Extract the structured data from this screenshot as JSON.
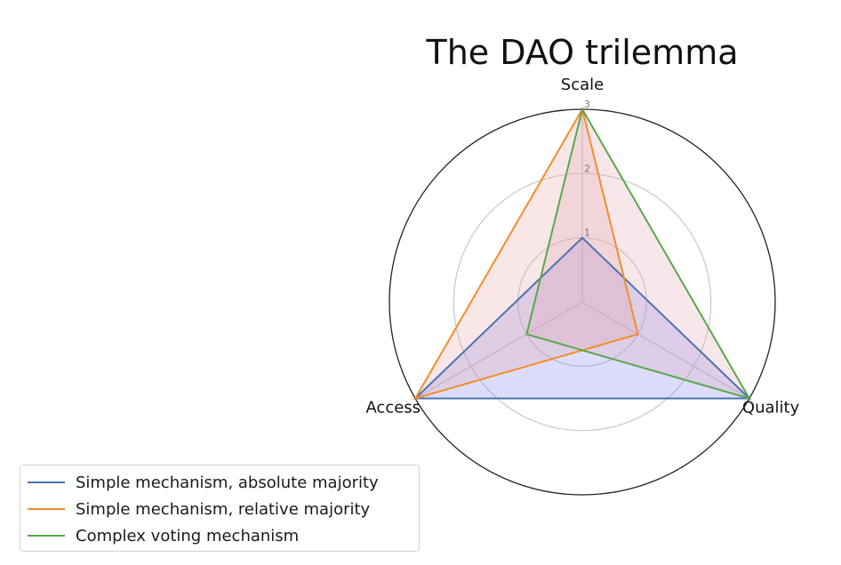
{
  "chart_data": {
    "type": "radar",
    "title": "The DAO trilemma",
    "axes": [
      "Scale",
      "Quality",
      "Access"
    ],
    "rticks": [
      1,
      2,
      3
    ],
    "rlim": [
      0,
      3
    ],
    "grid": true,
    "legend_position": "lower-left",
    "series": [
      {
        "name": "Simple mechanism, absolute majority",
        "values": [
          1,
          3,
          3
        ],
        "color": "#4c72b0",
        "fill": "#7777ee"
      },
      {
        "name": "Simple mechanism, relative majority",
        "values": [
          3,
          1,
          3
        ],
        "color": "#f28e2b",
        "fill": "#e8a0a0"
      },
      {
        "name": "Complex voting mechanism",
        "values": [
          3,
          3,
          1
        ],
        "color": "#59a84b",
        "fill": "#e0a0b0"
      }
    ]
  }
}
